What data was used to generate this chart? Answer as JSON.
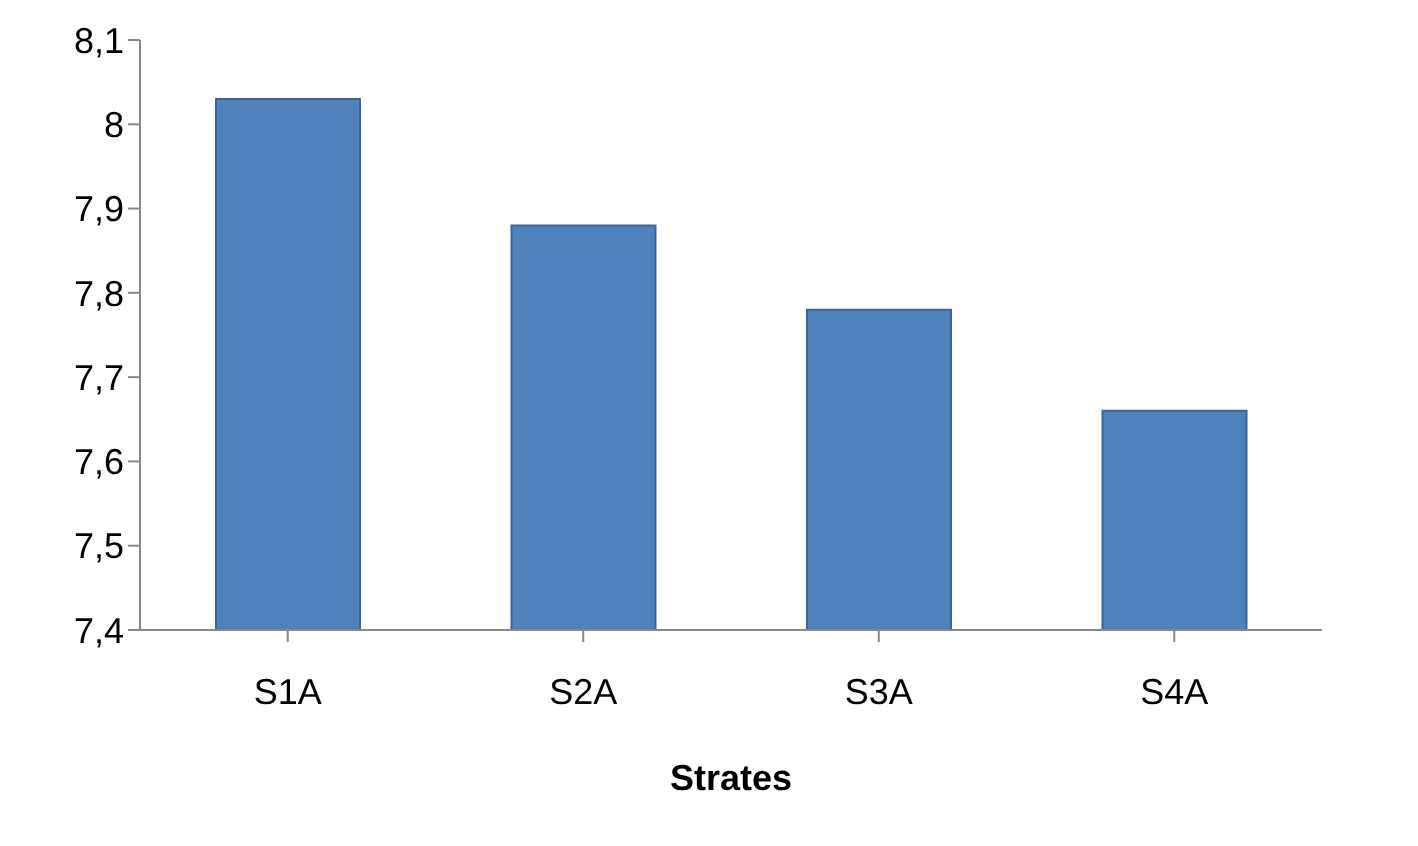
{
  "chart_data": {
    "type": "bar",
    "xlabel": "Strates",
    "categories": [
      "S1A",
      "S2A",
      "S3A",
      "S4A"
    ],
    "values": [
      8.03,
      7.88,
      7.78,
      7.66
    ],
    "color": "#4f81bd",
    "ylim": [
      7.4,
      8.1
    ],
    "yticks": [
      {
        "value": 7.4,
        "label": "7,4"
      },
      {
        "value": 7.5,
        "label": "7,5"
      },
      {
        "value": 7.6,
        "label": "7,6"
      },
      {
        "value": 7.7,
        "label": "7,7"
      },
      {
        "value": 7.8,
        "label": "7,8"
      },
      {
        "value": 7.9,
        "label": "7,9"
      },
      {
        "value": 8,
        "label": "8"
      },
      {
        "value": 8.1,
        "label": "8,1"
      }
    ],
    "grid": false,
    "legend": false
  }
}
